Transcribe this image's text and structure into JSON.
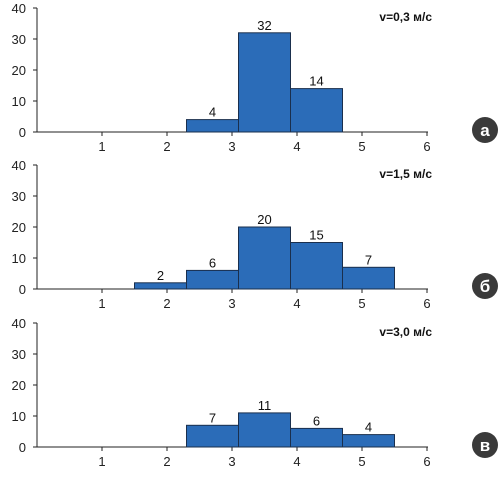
{
  "panel_badge_color": "#3a3a3a",
  "bar_fill": "#2b6cb8",
  "bar_stroke": "#1a2f4d",
  "chart_data": [
    {
      "type": "bar",
      "title": "v=0,3 м/с",
      "panel_label": "а",
      "xlim": [
        0,
        6
      ],
      "ylim": [
        0,
        40
      ],
      "x_ticks": [
        1,
        2,
        3,
        4,
        5,
        6
      ],
      "y_ticks": [
        0,
        10,
        20,
        30,
        40
      ],
      "bins": [
        {
          "x0": 2.3,
          "x1": 3.1,
          "value": 4
        },
        {
          "x0": 3.1,
          "x1": 3.9,
          "value": 32
        },
        {
          "x0": 3.9,
          "x1": 4.7,
          "value": 14
        }
      ]
    },
    {
      "type": "bar",
      "title": "v=1,5 м/с",
      "panel_label": "б",
      "xlim": [
        0,
        6
      ],
      "ylim": [
        0,
        40
      ],
      "x_ticks": [
        1,
        2,
        3,
        4,
        5,
        6
      ],
      "y_ticks": [
        0,
        10,
        20,
        30,
        40
      ],
      "bins": [
        {
          "x0": 1.5,
          "x1": 2.3,
          "value": 2
        },
        {
          "x0": 2.3,
          "x1": 3.1,
          "value": 6
        },
        {
          "x0": 3.1,
          "x1": 3.9,
          "value": 20
        },
        {
          "x0": 3.9,
          "x1": 4.7,
          "value": 15
        },
        {
          "x0": 4.7,
          "x1": 5.5,
          "value": 7
        }
      ]
    },
    {
      "type": "bar",
      "title": "v=3,0 м/с",
      "panel_label": "в",
      "xlim": [
        0,
        6
      ],
      "ylim": [
        0,
        40
      ],
      "x_ticks": [
        1,
        2,
        3,
        4,
        5,
        6
      ],
      "y_ticks": [
        0,
        10,
        20,
        30,
        40
      ],
      "bins": [
        {
          "x0": 2.3,
          "x1": 3.1,
          "value": 7
        },
        {
          "x0": 3.1,
          "x1": 3.9,
          "value": 11
        },
        {
          "x0": 3.9,
          "x1": 4.7,
          "value": 6
        },
        {
          "x0": 4.7,
          "x1": 5.5,
          "value": 4
        }
      ]
    }
  ]
}
